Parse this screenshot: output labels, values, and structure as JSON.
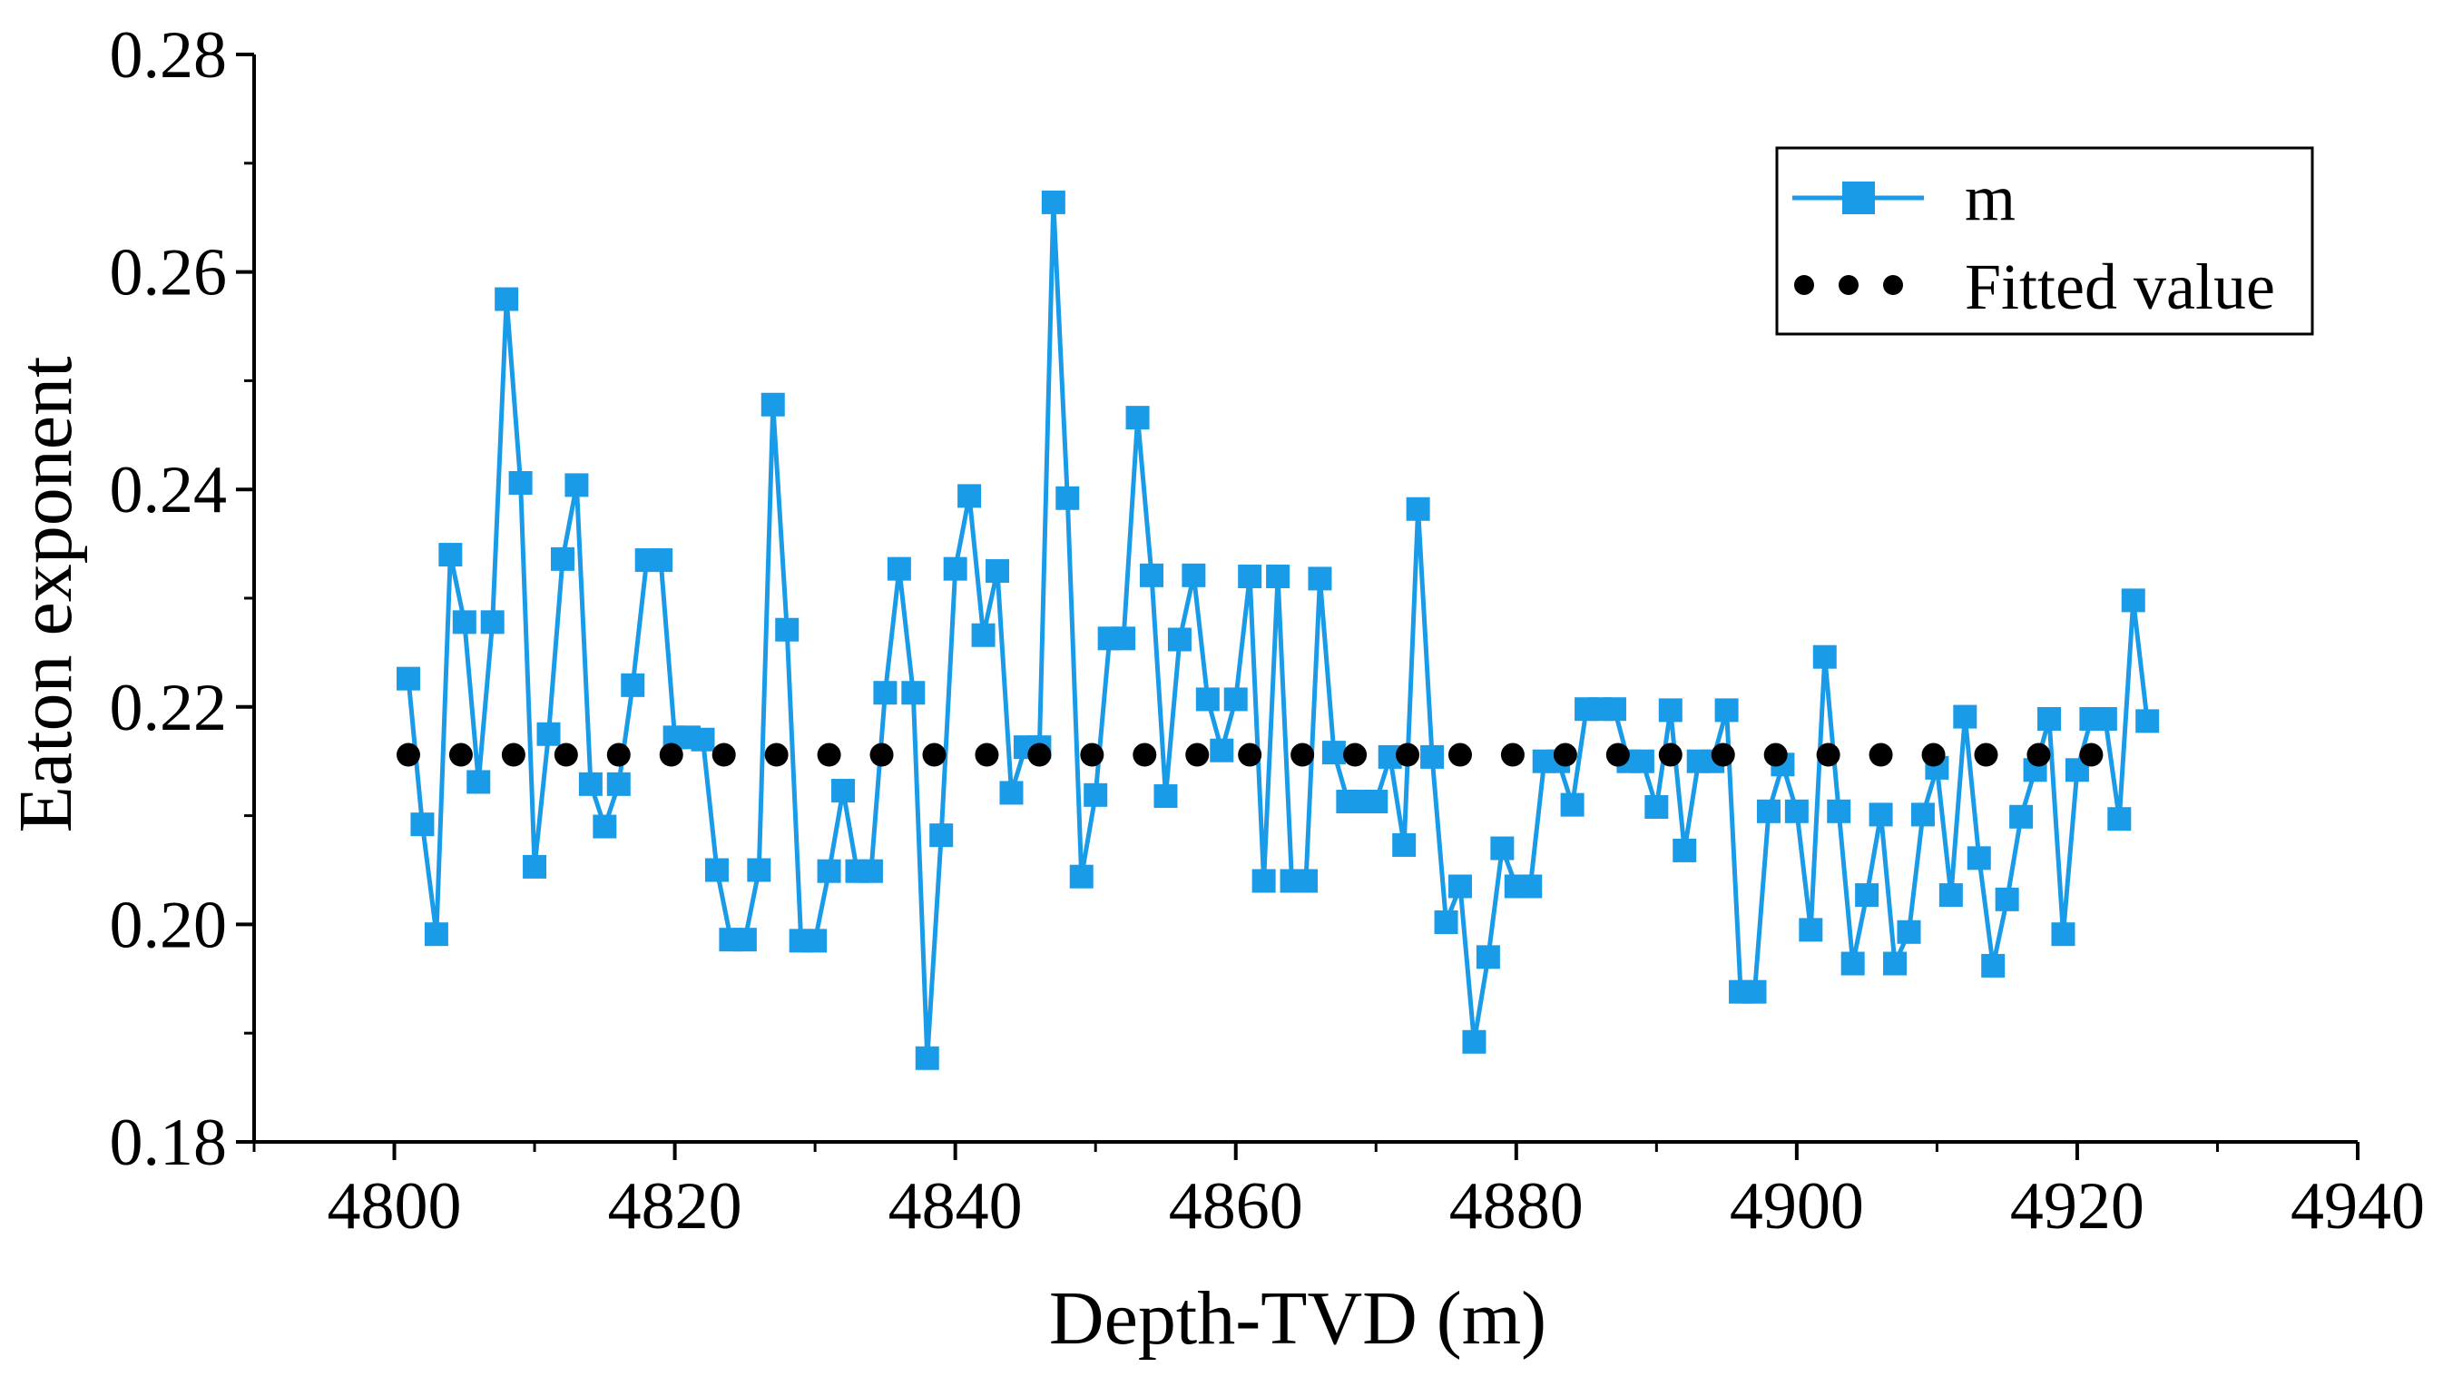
{
  "chart_data": {
    "type": "line",
    "title": "",
    "xlabel": "Depth-TVD (m)",
    "ylabel": "Eaton exponent",
    "xlim": [
      4790,
      4940
    ],
    "ylim": [
      0.18,
      0.28
    ],
    "xticks": [
      4800,
      4820,
      4840,
      4860,
      4880,
      4900,
      4920,
      4940
    ],
    "yticks": [
      0.18,
      0.2,
      0.22,
      0.24,
      0.26,
      0.28
    ],
    "xtick_labels": [
      "4800",
      "4820",
      "4840",
      "4860",
      "4880",
      "4900",
      "4920",
      "4940"
    ],
    "ytick_labels": [
      "0.18",
      "0.20",
      "0.22",
      "0.24",
      "0.26",
      "0.28"
    ],
    "grid": false,
    "legend_position": "top-right",
    "series": [
      {
        "name": "m",
        "style": "line-with-square-markers",
        "color": "#1a9be8",
        "x": [
          4801,
          4802,
          4803,
          4804,
          4805,
          4806,
          4807,
          4808,
          4809,
          4810,
          4811,
          4812,
          4813,
          4814,
          4815,
          4816,
          4817,
          4818,
          4819,
          4820,
          4821,
          4822,
          4823,
          4824,
          4825,
          4826,
          4827,
          4828,
          4829,
          4830,
          4831,
          4832,
          4833,
          4834,
          4835,
          4836,
          4837,
          4838,
          4839,
          4840,
          4841,
          4842,
          4843,
          4844,
          4845,
          4846,
          4847,
          4848,
          4849,
          4850,
          4851,
          4852,
          4853,
          4854,
          4855,
          4856,
          4857,
          4858,
          4859,
          4860,
          4861,
          4862,
          4863,
          4864,
          4865,
          4866,
          4867,
          4868,
          4869,
          4870,
          4871,
          4872,
          4873,
          4874,
          4875,
          4876,
          4877,
          4878,
          4879,
          4880,
          4881,
          4882,
          4883,
          4884,
          4885,
          4886,
          4887,
          4888,
          4889,
          4890,
          4891,
          4892,
          4893,
          4894,
          4895,
          4896,
          4897,
          4898,
          4899,
          4900,
          4901,
          4902,
          4903,
          4904,
          4905,
          4906,
          4907,
          4908,
          4909,
          4910,
          4911,
          4912,
          4913,
          4914,
          4915,
          4916,
          4917,
          4918,
          4919,
          4920,
          4921,
          4922,
          4923,
          4924,
          4925
        ],
        "y": [
          0.2226,
          0.2092,
          0.1991,
          0.234,
          0.2278,
          0.2131,
          0.2278,
          0.2575,
          0.2406,
          0.2053,
          0.2175,
          0.2336,
          0.2404,
          0.2129,
          0.209,
          0.2129,
          0.222,
          0.2335,
          0.2335,
          0.2172,
          0.2172,
          0.217,
          0.205,
          0.1986,
          0.1986,
          0.205,
          0.2478,
          0.2271,
          0.1985,
          0.1985,
          0.2049,
          0.2123,
          0.2049,
          0.2049,
          0.2213,
          0.2327,
          0.2213,
          0.1877,
          0.2082,
          0.2327,
          0.2394,
          0.2266,
          0.2325,
          0.2121,
          0.2163,
          0.2163,
          0.2664,
          0.2392,
          0.2044,
          0.2119,
          0.2263,
          0.2263,
          0.2466,
          0.2321,
          0.2118,
          0.2262,
          0.2321,
          0.2207,
          0.216,
          0.2207,
          0.232,
          0.204,
          0.232,
          0.204,
          0.204,
          0.2318,
          0.2158,
          0.2113,
          0.2113,
          0.2113,
          0.2154,
          0.2073,
          0.2382,
          0.2154,
          0.2002,
          0.2035,
          0.1892,
          0.197,
          0.207,
          0.2035,
          0.2035,
          0.215,
          0.215,
          0.211,
          0.2198,
          0.2198,
          0.2198,
          0.215,
          0.215,
          0.2108,
          0.2197,
          0.2068,
          0.215,
          0.215,
          0.2197,
          0.1938,
          0.1938,
          0.2104,
          0.2147,
          0.2104,
          0.1995,
          0.2246,
          0.2104,
          0.1964,
          0.2027,
          0.2101,
          0.1964,
          0.1993,
          0.2101,
          0.2144,
          0.2027,
          0.2191,
          0.2061,
          0.1962,
          0.2023,
          0.2099,
          0.2142,
          0.2189,
          0.1991,
          0.2142,
          0.2189,
          0.2189,
          0.2097,
          0.2298,
          0.2187
        ]
      },
      {
        "name": "Fitted value",
        "style": "dots",
        "color": "#000000",
        "x": [
          4801,
          4804.75,
          4808.5,
          4812.25,
          4816,
          4819.75,
          4823.5,
          4827.25,
          4831,
          4834.75,
          4838.5,
          4842.25,
          4846,
          4849.75,
          4853.5,
          4857.25,
          4861,
          4864.75,
          4868.5,
          4872.25,
          4876,
          4879.75,
          4883.5,
          4887.25,
          4891,
          4894.75,
          4898.5,
          4902.25,
          4906,
          4909.75,
          4913.5,
          4917.25,
          4921
        ],
        "y": [
          0.2156,
          0.2156,
          0.2156,
          0.2156,
          0.2156,
          0.2156,
          0.2156,
          0.2156,
          0.2156,
          0.2156,
          0.2156,
          0.2156,
          0.2156,
          0.2156,
          0.2156,
          0.2156,
          0.2156,
          0.2156,
          0.2156,
          0.2156,
          0.2156,
          0.2156,
          0.2156,
          0.2156,
          0.2156,
          0.2156,
          0.2156,
          0.2156,
          0.2156,
          0.2156,
          0.2156,
          0.2156,
          0.2156
        ]
      }
    ]
  }
}
